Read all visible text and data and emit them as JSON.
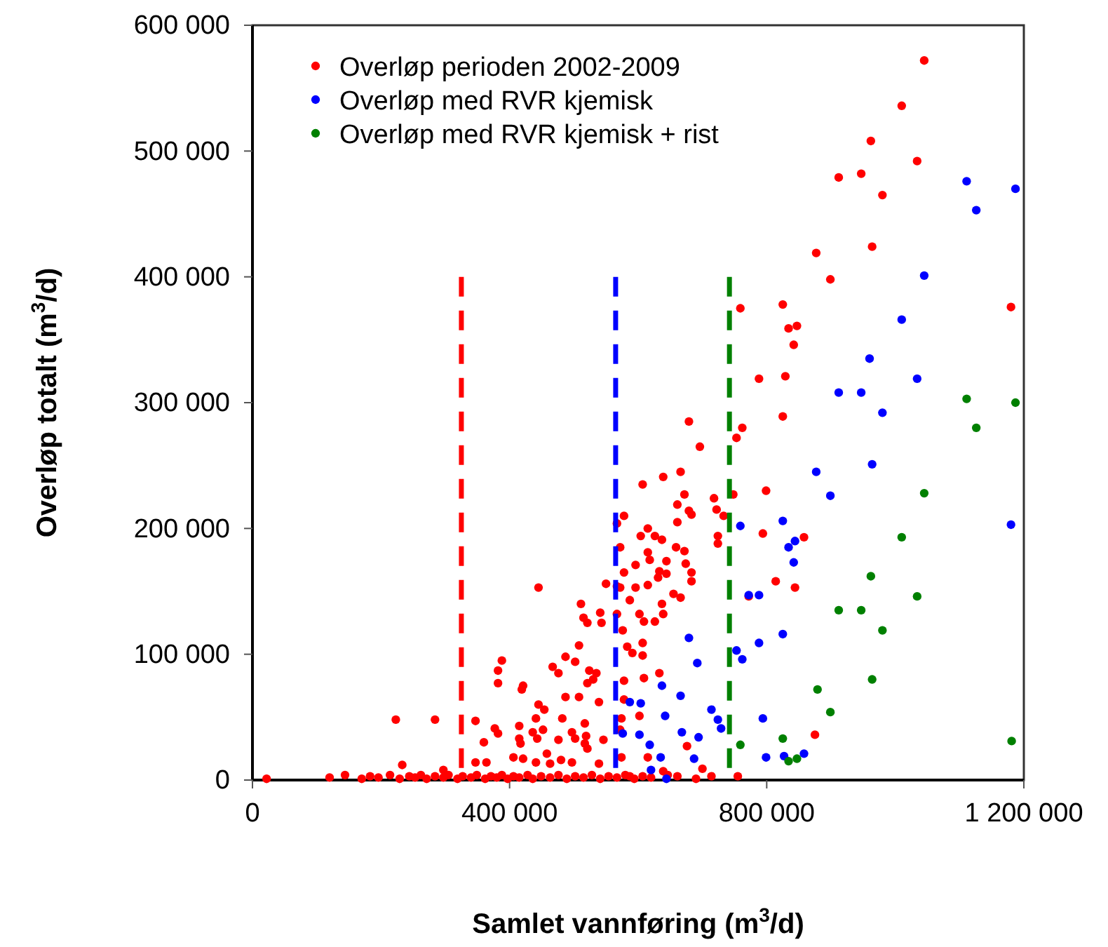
{
  "chart_data": {
    "type": "scatter",
    "xlabel": "Samlet vannføring (m$^{3}$/d)",
    "ylabel": "Overløp totalt (m$^{3}$/d)",
    "xlim": [
      0,
      1200000
    ],
    "ylim": [
      0,
      600000
    ],
    "xticks": [
      0,
      {
        "value": 400000,
        "label": "400 000"
      },
      {
        "value": 800000,
        "label": "800 000"
      },
      {
        "value": 1200000,
        "label": "1 200 000"
      }
    ],
    "yticks": [
      0,
      {
        "value": 100000,
        "label": "100 000"
      },
      {
        "value": 200000,
        "label": "200 000"
      },
      {
        "value": 300000,
        "label": "300 000"
      },
      {
        "value": 400000,
        "label": "400 000"
      },
      {
        "value": 500000,
        "label": "500 000"
      },
      {
        "value": 600000,
        "label": "600 000"
      }
    ],
    "grid": false,
    "legend": "top left",
    "marker": "circle",
    "series": [
      {
        "name": "Overløp perioden 2002-2009",
        "color": "#ff0000",
        "x": [
          1045000,
          1010000,
          962000,
          1034000,
          912000,
          947000,
          980000,
          877000,
          964000,
          899000,
          1180000,
          759000,
          825000,
          834000,
          847000,
          842000,
          788000,
          829000,
          825000,
          762000,
          753000,
          679000,
          696000,
          666000,
          639000,
          607000,
          799000,
          672000,
          718000,
          748000,
          661000,
          679000,
          722000,
          733000,
          683000,
          661000,
          578000,
          724000,
          724000,
          794000,
          858000,
          814000,
          844000,
          772000,
          604000,
          615000,
          626000,
          637000,
          659000,
          672000,
          615000,
          618000,
          644000,
          633000,
          644000,
          596000,
          578000,
          572000,
          596000,
          615000,
          631000,
          655000,
          666000,
          683000,
          683000,
          674000,
          637000,
          587000,
          602000,
          609000,
          626000,
          639000,
          576000,
          583000,
          591000,
          607000,
          607000,
          609000,
          633000,
          578000,
          578000,
          602000,
          574000,
          572000,
          615000,
          676000,
          574000,
          587000,
          639000,
          661000,
          690000,
          700000,
          714000,
          755000,
          875000,
          567000,
          567000,
          567000,
          550000,
          572000,
          511000,
          515000,
          521000,
          541000,
          543000,
          445000,
          508000,
          487000,
          502000,
          467000,
          476000,
          524000,
          521000,
          535000,
          530000,
          539000,
          388000,
          382000,
          382000,
          421000,
          419000,
          445000,
          454000,
          441000,
          482000,
          508000,
          517000,
          487000,
          284000,
          347000,
          377000,
          382000,
          360000,
          415000,
          415000,
          417000,
          436000,
          443000,
          452000,
          458000,
          476000,
          497000,
          502000,
          517000,
          519000,
          546000,
          521000,
          406000,
          421000,
          441000,
          463000,
          480000,
          497000,
          539000,
          233000,
          297000,
          347000,
          364000,
          223000,
          22000,
          120000,
          144000,
          170000,
          183000,
          196000,
          214000,
          229000,
          244000,
          253000,
          262000,
          271000,
          284000,
          297000,
          305000,
          319000,
          327000,
          340000,
          349000,
          362000,
          371000,
          380000,
          388000,
          397000,
          406000,
          415000,
          428000,
          436000,
          449000,
          463000,
          476000,
          489000,
          502000,
          515000,
          528000,
          541000,
          554000,
          567000,
          580000,
          594000,
          607000,
          620000,
          646000
        ],
        "values": [
          572000,
          536000,
          508000,
          492000,
          479000,
          482000,
          465000,
          419000,
          424000,
          398000,
          376000,
          375000,
          378000,
          359000,
          361000,
          346000,
          319000,
          321000,
          289000,
          280000,
          272000,
          285000,
          265000,
          245000,
          241000,
          235000,
          230000,
          227000,
          224000,
          227000,
          219000,
          214000,
          215000,
          210000,
          211000,
          205000,
          210000,
          194000,
          188000,
          196000,
          193000,
          158000,
          153000,
          146000,
          194000,
          200000,
          194000,
          191000,
          185000,
          182000,
          181000,
          175000,
          174000,
          166000,
          164000,
          171000,
          165000,
          153000,
          153000,
          155000,
          161000,
          148000,
          145000,
          165000,
          158000,
          172000,
          140000,
          143000,
          132000,
          126000,
          126000,
          132000,
          119000,
          106000,
          101000,
          109000,
          99000,
          81000,
          85000,
          79000,
          64000,
          51000,
          49000,
          40000,
          18000,
          27000,
          18000,
          3000,
          7000,
          3000,
          1000,
          9000,
          3000,
          3000,
          36000,
          204000,
          154000,
          132000,
          156000,
          185000,
          140000,
          129000,
          125000,
          133000,
          125000,
          153000,
          107000,
          98000,
          94000,
          90000,
          85000,
          87000,
          77000,
          85000,
          80000,
          62000,
          95000,
          87000,
          77000,
          75000,
          72000,
          60000,
          56000,
          49000,
          49000,
          66000,
          45000,
          66000,
          48000,
          47000,
          41000,
          37000,
          30000,
          43000,
          33000,
          29000,
          38000,
          33000,
          40000,
          21000,
          32000,
          38000,
          33000,
          29000,
          35000,
          32000,
          25000,
          18000,
          17000,
          14000,
          13000,
          16000,
          14000,
          13000,
          12000,
          8000,
          14000,
          14000,
          48000,
          1000,
          2000,
          4000,
          1000,
          3000,
          2000,
          4000,
          1000,
          3000,
          2000,
          4000,
          1000,
          3000,
          2000,
          4000,
          1000,
          3000,
          2000,
          4000,
          1000,
          3000,
          2000,
          4000,
          1000,
          3000,
          2000,
          4000,
          1000,
          3000,
          2000,
          4000,
          1000,
          3000,
          2000,
          4000,
          1000,
          3000,
          2000,
          4000,
          1000,
          3000,
          2000,
          4000
        ]
      },
      {
        "name": "Overløp med RVR kjemisk",
        "color": "#0000ff",
        "x": [
          1187000,
          1111000,
          1126000,
          1045000,
          1010000,
          960000,
          1034000,
          912000,
          947000,
          980000,
          964000,
          877000,
          899000,
          1180000,
          759000,
          825000,
          834000,
          844000,
          842000,
          788000,
          772000,
          825000,
          679000,
          788000,
          753000,
          692000,
          762000,
          637000,
          666000,
          604000,
          642000,
          714000,
          724000,
          729000,
          668000,
          694000,
          602000,
          618000,
          635000,
          687000,
          794000,
          799000,
          827000,
          858000,
          576000,
          587000,
          620000,
          644000
        ],
        "values": [
          470000,
          476000,
          453000,
          401000,
          366000,
          335000,
          319000,
          308000,
          308000,
          292000,
          251000,
          245000,
          226000,
          203000,
          202000,
          206000,
          185000,
          190000,
          173000,
          147000,
          147000,
          116000,
          113000,
          109000,
          103000,
          93000,
          96000,
          75000,
          67000,
          61000,
          51000,
          56000,
          48000,
          41000,
          38000,
          34000,
          36000,
          28000,
          18000,
          17000,
          49000,
          18000,
          19000,
          21000,
          37000,
          62000,
          8000,
          1000
        ]
      },
      {
        "name": "Overløp med RVR kjemisk + rist",
        "color": "#008000",
        "x": [
          759000,
          825000,
          834000,
          847000,
          879000,
          899000,
          912000,
          947000,
          962000,
          964000,
          980000,
          1010000,
          1034000,
          1045000,
          1111000,
          1126000,
          1181000,
          1187000
        ],
        "values": [
          28000,
          33000,
          15000,
          17000,
          72000,
          54000,
          135000,
          135000,
          162000,
          80000,
          119000,
          193000,
          146000,
          228000,
          303000,
          280000,
          31000,
          300000
        ]
      },
      {
        "type": "line",
        "line_style": "dashed",
        "marker": "none",
        "color": "#ff0000",
        "x": [
          325000,
          325000
        ],
        "values": [
          400000,
          0
        ]
      },
      {
        "type": "line",
        "line_style": "dashed",
        "marker": "none",
        "color": "#0000ff",
        "x": [
          565000,
          565000
        ],
        "values": [
          400000,
          0
        ]
      },
      {
        "type": "line",
        "line_style": "dashed",
        "marker": "none",
        "color": "#008000",
        "x": [
          742000,
          742000
        ],
        "values": [
          400000,
          0
        ]
      }
    ]
  }
}
